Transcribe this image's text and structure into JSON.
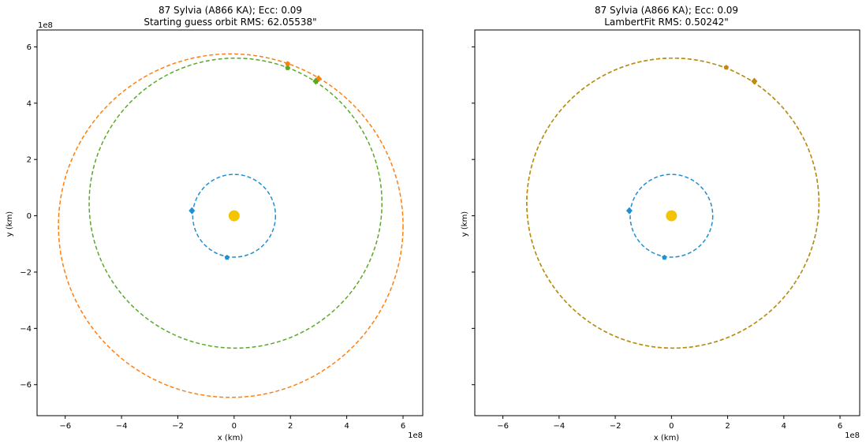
{
  "figure": {
    "background": "#ffffff",
    "sun_color": "#f5c400",
    "axis_color": "#000000"
  },
  "chart_data": [
    {
      "type": "line",
      "title": "87 Sylvia (A866 KA); Ecc: 0.09",
      "subtitle": "Starting guess orbit RMS: 62.05538\"",
      "xlabel": "x (km)",
      "ylabel": "y (km)",
      "xlim": [
        -7.0,
        6.7
      ],
      "ylim": [
        -7.1,
        6.6
      ],
      "xticks": [
        -6,
        -4,
        -2,
        0,
        2,
        4,
        6
      ],
      "yticks": [
        -6,
        -4,
        -2,
        0,
        2,
        4,
        6
      ],
      "axis_multiplier": "1e8",
      "grid": false,
      "show_yticklabels": true,
      "sun": {
        "x": 0,
        "y": 0
      },
      "series": [
        {
          "color": "#1f8fd0",
          "style": "dashed",
          "orbit": {
            "cx": 0,
            "cy": 0,
            "rx": 1.47,
            "ry": 1.47
          },
          "markers": [
            {
              "x": -1.5,
              "y": 0.18,
              "shape": "diamond"
            },
            {
              "x": -0.25,
              "y": -1.48,
              "shape": "pentagon"
            }
          ]
        },
        {
          "color": "#ff7f0e",
          "style": "dashed",
          "orbit": {
            "cx": -0.12,
            "cy": -0.35,
            "rx": 6.12,
            "ry": 6.1
          },
          "markers": [
            {
              "x": 3.0,
              "y": 4.87,
              "shape": "diamond"
            },
            {
              "x": 1.9,
              "y": 5.4,
              "shape": "pentagon"
            }
          ]
        },
        {
          "color": "#5aa829",
          "style": "dashed",
          "orbit": {
            "cx": 0.05,
            "cy": 0.45,
            "rx": 5.2,
            "ry": 5.15
          },
          "markers": [
            {
              "x": 2.9,
              "y": 4.78,
              "shape": "diamond"
            },
            {
              "x": 1.9,
              "y": 5.25,
              "shape": "pentagon"
            }
          ]
        }
      ]
    },
    {
      "type": "line",
      "title": "87 Sylvia (A866 KA); Ecc: 0.09",
      "subtitle": "LambertFit RMS: 0.50242\"",
      "xlabel": "x (km)",
      "ylabel": "y (km)",
      "xlim": [
        -7.0,
        6.7
      ],
      "ylim": [
        -7.1,
        6.6
      ],
      "xticks": [
        -6,
        -4,
        -2,
        0,
        2,
        4,
        6
      ],
      "yticks": [
        -6,
        -4,
        -2,
        0,
        2,
        4,
        6
      ],
      "axis_multiplier": "1e8",
      "grid": false,
      "show_yticklabels": false,
      "sun": {
        "x": 0,
        "y": 0
      },
      "series": [
        {
          "color": "#1f8fd0",
          "style": "dashed",
          "orbit": {
            "cx": 0,
            "cy": 0,
            "rx": 1.47,
            "ry": 1.47
          },
          "markers": [
            {
              "x": -1.5,
              "y": 0.18,
              "shape": "diamond"
            },
            {
              "x": -0.25,
              "y": -1.48,
              "shape": "pentagon"
            }
          ]
        },
        {
          "color": "#5aa829",
          "style": "dashed",
          "orbit": {
            "cx": 0.05,
            "cy": 0.45,
            "rx": 5.2,
            "ry": 5.15
          },
          "markers": []
        },
        {
          "color": "#c2880f",
          "style": "dashed",
          "orbit": {
            "cx": 0.05,
            "cy": 0.45,
            "rx": 5.2,
            "ry": 5.15
          },
          "markers": [
            {
              "x": 2.95,
              "y": 4.78,
              "shape": "diamond"
            },
            {
              "x": 1.95,
              "y": 5.27,
              "shape": "pentagon"
            }
          ]
        }
      ]
    }
  ]
}
